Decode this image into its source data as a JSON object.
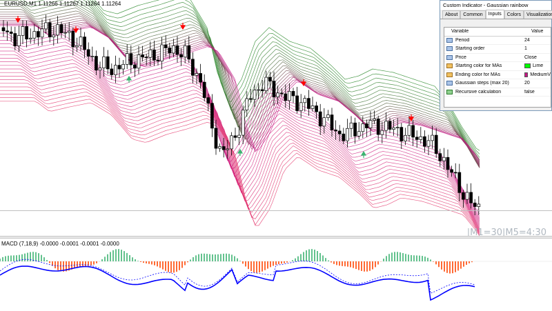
{
  "chart": {
    "symbol_label": "EURUSD,M1  1.11266 1.11267 1.11264 1.11264",
    "timer_label": "|M1=30|M5=4:30"
  },
  "macd": {
    "label": "MACD (7,18,9) -0.0000 -0.0001 -0.0001 -0.0000"
  },
  "dialog": {
    "title": "Custom Indicator - Gaussian rainbow",
    "tabs": [
      "About",
      "Common",
      "Inputs",
      "Colors",
      "Visualization"
    ],
    "active_tab": "Inputs",
    "headers": {
      "variable": "Variable",
      "value": "Value"
    },
    "rows": [
      {
        "variable": "Period",
        "value": "24"
      },
      {
        "variable": "Starting order",
        "value": "1"
      },
      {
        "variable": "Price",
        "value": "Close"
      },
      {
        "variable": "Starting color for MAs",
        "value": "Lime",
        "swatch": "#00ff00"
      },
      {
        "variable": "Ending color for MAs",
        "value": "MediumV",
        "swatch": "#c71585"
      },
      {
        "variable": "Gaussian steps (max 20)",
        "value": "20"
      },
      {
        "variable": "Recursive calculation",
        "value": "false"
      }
    ]
  },
  "colors": {
    "bull_candle": "#ffffff",
    "bear_candle": "#000000",
    "ma_start": "#00ff00",
    "ma_end": "#c71585",
    "arrow_up": "#3cb371",
    "arrow_down": "#ff0000",
    "macd_line": "#0000ff",
    "signal_line": "#0000ff",
    "hist_up": "#3cb371",
    "hist_down": "#ff4500"
  }
}
